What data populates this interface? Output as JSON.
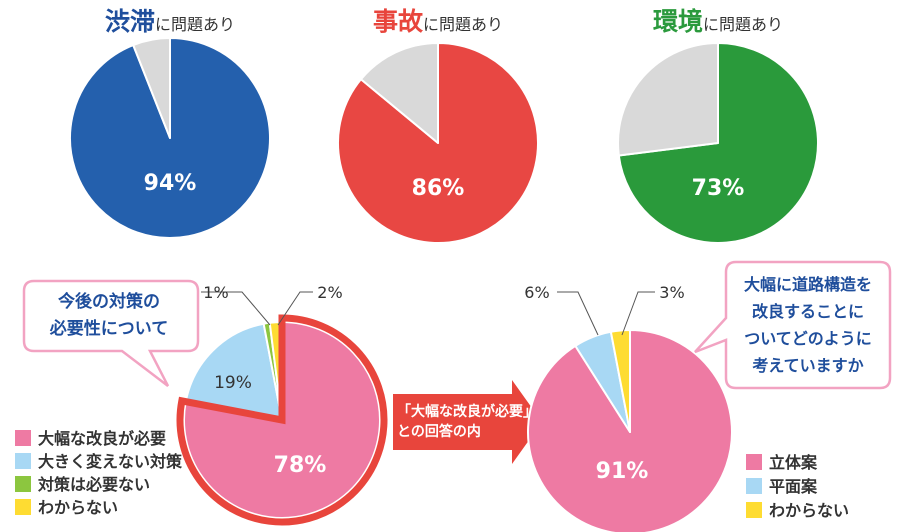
{
  "chart_data": [
    {
      "type": "pie",
      "title_em": "渋滞",
      "title_rest": "に問題あり",
      "title_color": "#1f4e9c",
      "values": [
        94,
        6
      ],
      "colors": [
        "#2460ad",
        "#d9d9d9"
      ],
      "center_label": "94%"
    },
    {
      "type": "pie",
      "title_em": "事故",
      "title_rest": "に問題あり",
      "title_color": "#e8453c",
      "values": [
        86,
        14
      ],
      "colors": [
        "#e84743",
        "#d9d9d9"
      ],
      "center_label": "86%"
    },
    {
      "type": "pie",
      "title_em": "環境",
      "title_rest": "に問題あり",
      "title_color": "#2b9a3d",
      "values": [
        73,
        27
      ],
      "colors": [
        "#2a9a3b",
        "#d9d9d9"
      ],
      "center_label": "73%"
    },
    {
      "type": "pie",
      "categories": [
        "大幅な改良が必要",
        "大きく変えない対策",
        "対策は必要ない",
        "わからない"
      ],
      "values": [
        78,
        19,
        1,
        2
      ],
      "colors": [
        "#ee7aa3",
        "#a8d8f4",
        "#8cc63f",
        "#fedc32"
      ],
      "labels": [
        "78%",
        "19%",
        "1%",
        "2%"
      ],
      "callout": [
        "今後の対策の",
        "必要性について"
      ]
    },
    {
      "type": "pie",
      "categories": [
        "立体案",
        "平面案",
        "わからない"
      ],
      "values": [
        91,
        6,
        3
      ],
      "colors": [
        "#ee7aa3",
        "#a8d8f4",
        "#fedc32"
      ],
      "labels": [
        "91%",
        "6%",
        "3%"
      ],
      "callout": [
        "大幅に道路構造を",
        "改良することに",
        "ついてどのように",
        "考えていますか"
      ]
    }
  ],
  "arrow_label": [
    "「大幅な改良が必要」",
    "との回答の内"
  ],
  "colors": {
    "pie_outline": "#ffffff",
    "highlight_border": "#e8453c",
    "callout_border": "#f2a3c2",
    "callout_text": "#1f4e9c",
    "arrow_fill": "#e8453c",
    "text": "#333333"
  }
}
